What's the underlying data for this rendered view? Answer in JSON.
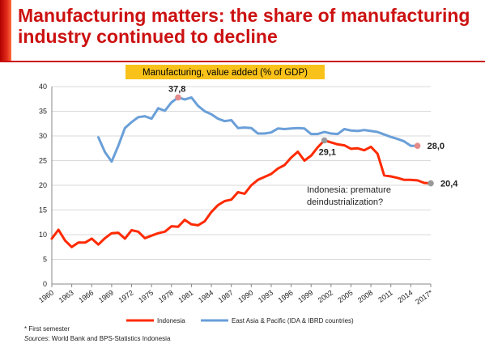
{
  "page": {
    "title": "Manufacturing matters: the share of manufacturing industry continued to decline",
    "footnote": "* First semester",
    "sources_label": "Sources",
    "sources_text": ": World Bank and BPS-Statistics Indonesia"
  },
  "chart_data": {
    "type": "line",
    "title": "Manufacturing, value added (% of GDP)",
    "ylim": [
      0,
      40
    ],
    "yticks": [
      0,
      5,
      10,
      15,
      20,
      25,
      30,
      35,
      40
    ],
    "xlim": [
      1960,
      2017
    ],
    "xtick_labels": [
      {
        "x": 1960,
        "label": "1960"
      },
      {
        "x": 1963,
        "label": "1963"
      },
      {
        "x": 1966,
        "label": "1966"
      },
      {
        "x": 1969,
        "label": "1969"
      },
      {
        "x": 1972,
        "label": "1972"
      },
      {
        "x": 1975,
        "label": "1975"
      },
      {
        "x": 1978,
        "label": "1978"
      },
      {
        "x": 1981,
        "label": "1981"
      },
      {
        "x": 1984,
        "label": "1984"
      },
      {
        "x": 1987,
        "label": "1987"
      },
      {
        "x": 1990,
        "label": "1990"
      },
      {
        "x": 1993,
        "label": "1993"
      },
      {
        "x": 1996,
        "label": "1996"
      },
      {
        "x": 1999,
        "label": "1999"
      },
      {
        "x": 2002,
        "label": "2002"
      },
      {
        "x": 2005,
        "label": "2005"
      },
      {
        "x": 2008,
        "label": "2008"
      },
      {
        "x": 2011,
        "label": "2011"
      },
      {
        "x": 2014,
        "label": "2014"
      },
      {
        "x": 2017,
        "label": "2017*"
      }
    ],
    "grid": "horizontal",
    "legend_position": "bottom",
    "series": [
      {
        "name": "Indonesia",
        "color": "#ff2a00",
        "x": [
          1960,
          1961,
          1962,
          1963,
          1964,
          1965,
          1966,
          1967,
          1968,
          1969,
          1970,
          1971,
          1972,
          1973,
          1974,
          1975,
          1976,
          1977,
          1978,
          1979,
          1980,
          1981,
          1982,
          1983,
          1984,
          1985,
          1986,
          1987,
          1988,
          1989,
          1990,
          1991,
          1992,
          1993,
          1994,
          1995,
          1996,
          1997,
          1998,
          1999,
          2000,
          2001,
          2002,
          2003,
          2004,
          2005,
          2006,
          2007,
          2008,
          2009,
          2010,
          2011,
          2012,
          2013,
          2014,
          2015,
          2016,
          2017
        ],
        "values": [
          9.2,
          11.0,
          8.8,
          7.5,
          8.4,
          8.4,
          9.2,
          8.0,
          9.3,
          10.3,
          10.4,
          9.2,
          10.9,
          10.6,
          9.3,
          9.8,
          10.3,
          10.6,
          11.7,
          11.6,
          13.0,
          12.1,
          11.9,
          12.7,
          14.6,
          16.0,
          16.8,
          17.1,
          18.6,
          18.3,
          20.0,
          21.1,
          21.7,
          22.3,
          23.4,
          24.1,
          25.6,
          26.8,
          25.0,
          26.0,
          27.7,
          29.1,
          28.7,
          28.3,
          28.1,
          27.4,
          27.5,
          27.1,
          27.8,
          26.4,
          22.0,
          21.8,
          21.5,
          21.1,
          21.1,
          21.0,
          20.5,
          20.4
        ]
      },
      {
        "name": "East Asia & Pacific (IDA & IBRD countries)",
        "color": "#6a9fd8",
        "x": [
          1967,
          1968,
          1969,
          1970,
          1971,
          1972,
          1973,
          1974,
          1975,
          1976,
          1977,
          1978,
          1979,
          1980,
          1981,
          1982,
          1983,
          1984,
          1985,
          1986,
          1987,
          1988,
          1989,
          1990,
          1991,
          1992,
          1993,
          1994,
          1995,
          1996,
          1997,
          1998,
          1999,
          2000,
          2001,
          2002,
          2003,
          2004,
          2005,
          2006,
          2007,
          2008,
          2009,
          2010,
          2011,
          2012,
          2013,
          2014,
          2015
        ],
        "values": [
          29.7,
          26.7,
          24.8,
          28.0,
          31.6,
          32.8,
          33.8,
          34.0,
          33.5,
          35.6,
          35.1,
          36.8,
          37.8,
          37.4,
          37.8,
          36.1,
          35.0,
          34.4,
          33.5,
          33.0,
          33.2,
          31.6,
          31.7,
          31.6,
          30.5,
          30.5,
          30.7,
          31.5,
          31.4,
          31.5,
          31.6,
          31.5,
          30.4,
          30.4,
          30.8,
          30.5,
          30.4,
          31.4,
          31.1,
          31.0,
          31.2,
          31.0,
          30.8,
          30.3,
          29.8,
          29.4,
          28.9,
          28.0,
          28.0
        ]
      }
    ],
    "markers": [
      {
        "series": 1,
        "x": 1979,
        "y": 37.8,
        "label": "37,8",
        "color": "#e58a8a"
      },
      {
        "series": 0,
        "x": 2001,
        "y": 29.1,
        "label": "29,1",
        "color": "#999999"
      },
      {
        "series": 1,
        "x": 2015,
        "y": 28.0,
        "label": "28,0",
        "color": "#e58a8a"
      },
      {
        "series": 0,
        "x": 2017,
        "y": 20.4,
        "label": "20,4",
        "color": "#999999"
      }
    ],
    "annotation": [
      "Indonesia: premature",
      "deindustrialization?"
    ]
  }
}
